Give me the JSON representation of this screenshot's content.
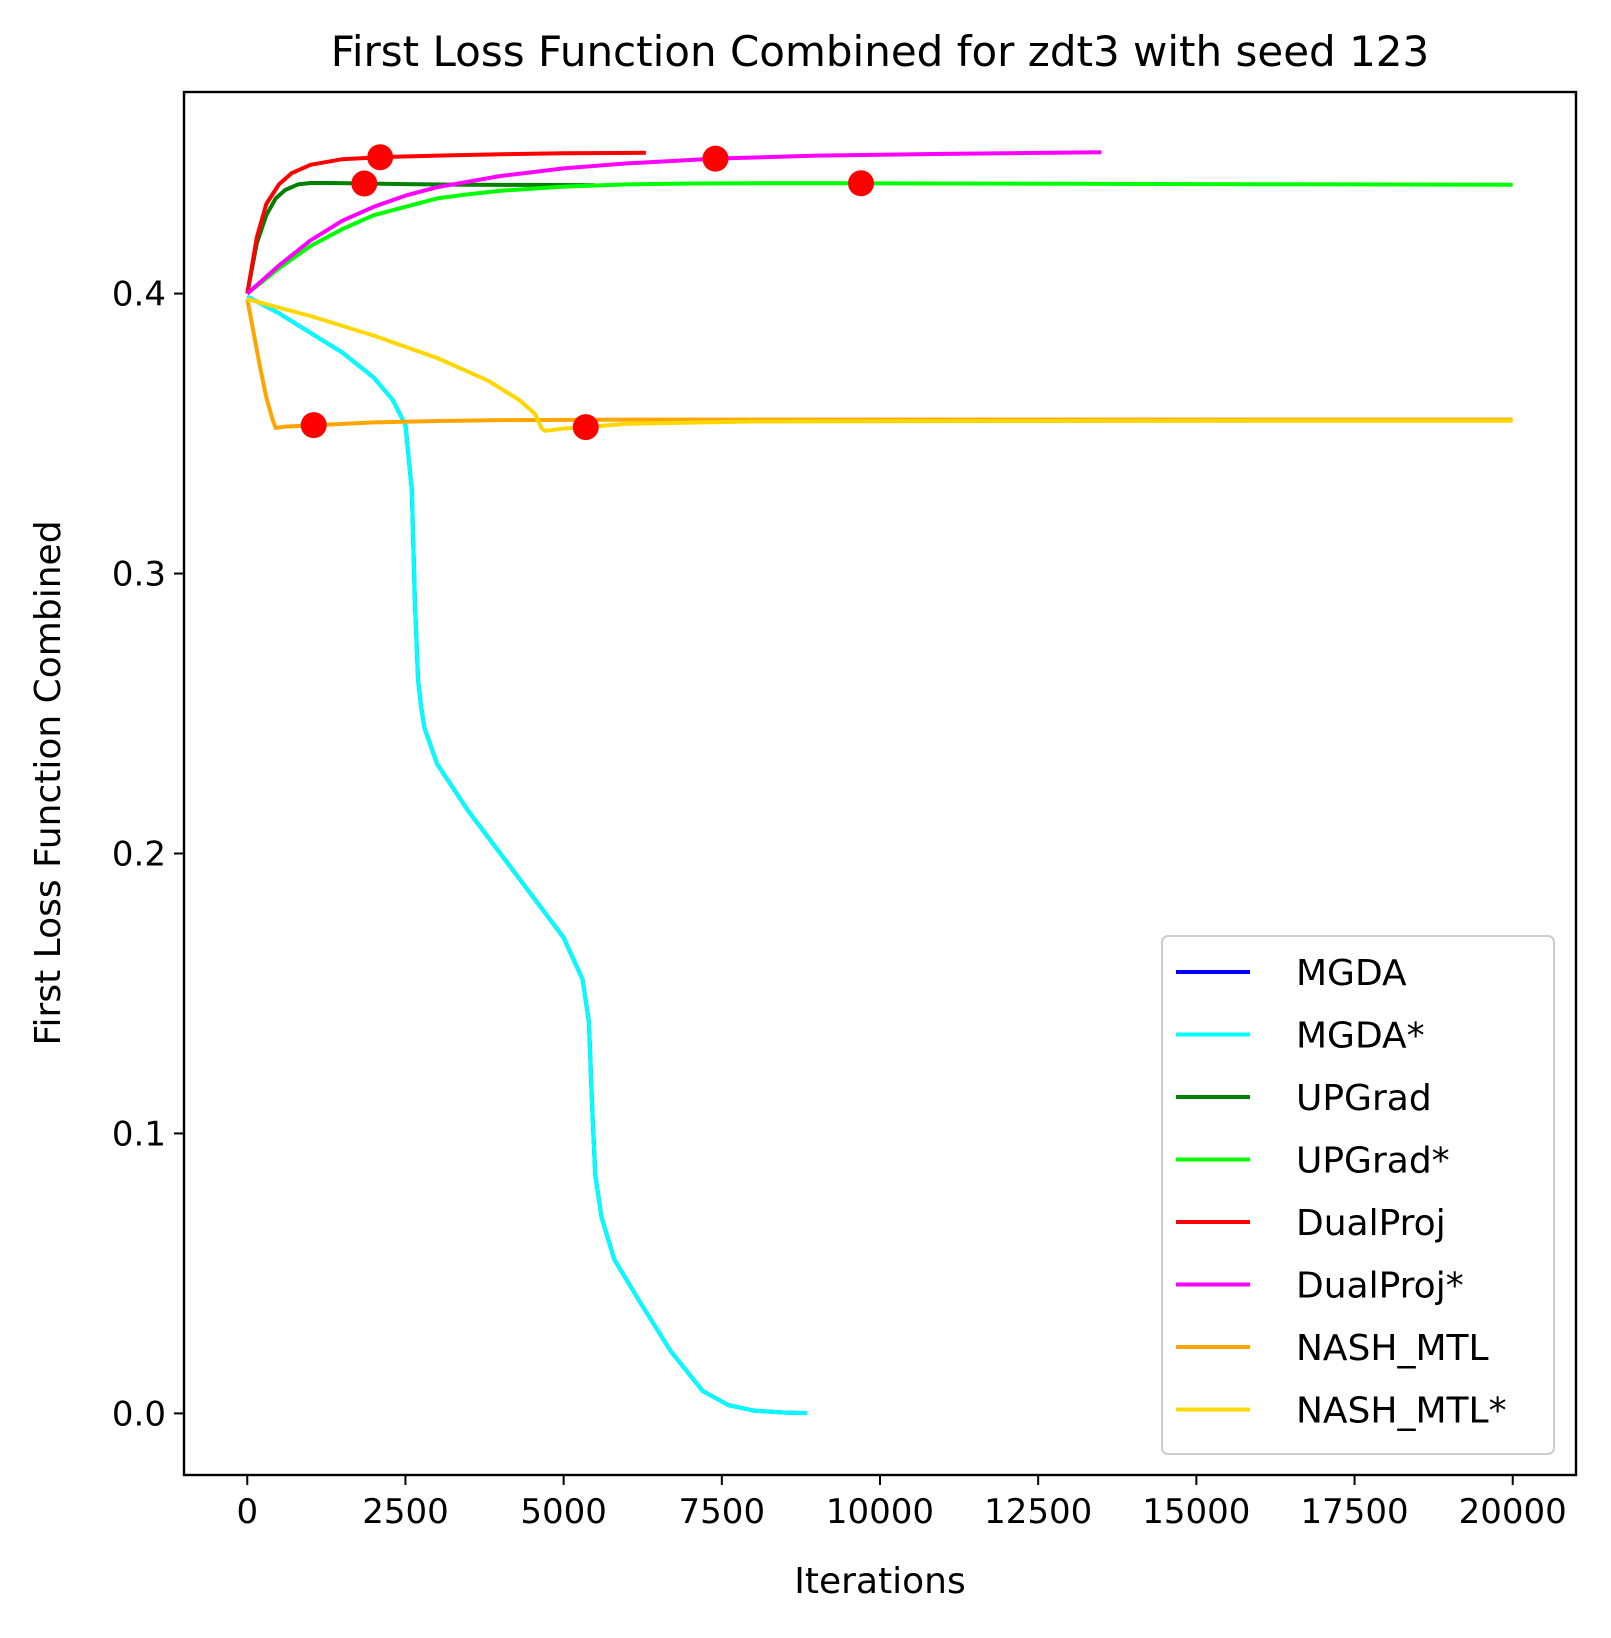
{
  "chart_data": {
    "type": "line",
    "title": "First Loss Function Combined for zdt3 with seed 123",
    "xlabel": "Iterations",
    "ylabel": "First Loss Function Combined",
    "xlim": [
      -1000,
      21000
    ],
    "ylim": [
      -0.022,
      0.472
    ],
    "xticks": [
      0,
      2500,
      5000,
      7500,
      10000,
      12500,
      15000,
      17500,
      20000
    ],
    "xtick_labels": [
      "0",
      "2500",
      "5000",
      "7500",
      "10000",
      "12500",
      "15000",
      "17500",
      "20000"
    ],
    "yticks": [
      0.0,
      0.1,
      0.2,
      0.3,
      0.4
    ],
    "ytick_labels": [
      "0.0",
      "0.1",
      "0.2",
      "0.3",
      "0.4"
    ],
    "grid": false,
    "legend_position": "lower right",
    "marker_color": "#ff0000",
    "series": [
      {
        "name": "MGDA",
        "color": "#0000ff",
        "x": [
          0,
          500,
          1000,
          1500,
          2000,
          2300,
          2500,
          2600,
          2650,
          2700,
          2750,
          2800,
          3000,
          3500,
          4000,
          4500,
          5000,
          5300,
          5400,
          5450,
          5500,
          5600,
          5800,
          6200,
          6700,
          7200,
          7600,
          8000,
          8500,
          8850
        ],
        "y": [
          0.399,
          0.393,
          0.386,
          0.379,
          0.37,
          0.362,
          0.353,
          0.33,
          0.29,
          0.262,
          0.252,
          0.245,
          0.232,
          0.215,
          0.2,
          0.185,
          0.17,
          0.155,
          0.14,
          0.11,
          0.085,
          0.07,
          0.055,
          0.04,
          0.022,
          0.008,
          0.003,
          0.001,
          0.0003,
          0.0001
        ]
      },
      {
        "name": "MGDA*",
        "color": "#00ffff",
        "x": [
          0,
          500,
          1000,
          1500,
          2000,
          2300,
          2500,
          2600,
          2650,
          2700,
          2750,
          2800,
          3000,
          3500,
          4000,
          4500,
          5000,
          5300,
          5400,
          5450,
          5500,
          5600,
          5800,
          6200,
          6700,
          7200,
          7600,
          8000,
          8500,
          8850
        ],
        "y": [
          0.399,
          0.393,
          0.386,
          0.379,
          0.37,
          0.362,
          0.353,
          0.33,
          0.29,
          0.262,
          0.252,
          0.245,
          0.232,
          0.215,
          0.2,
          0.185,
          0.17,
          0.155,
          0.14,
          0.11,
          0.085,
          0.07,
          0.055,
          0.04,
          0.022,
          0.008,
          0.003,
          0.001,
          0.0003,
          0.0001
        ]
      },
      {
        "name": "UPGrad",
        "color": "#008000",
        "x": [
          0,
          150,
          300,
          450,
          600,
          800,
          1000,
          1300,
          1600,
          1900,
          2500,
          3500,
          4500,
          5500
        ],
        "y": [
          0.4,
          0.418,
          0.428,
          0.434,
          0.437,
          0.439,
          0.4395,
          0.4395,
          0.4394,
          0.4393,
          0.4391,
          0.4389,
          0.4388,
          0.4387
        ]
      },
      {
        "name": "UPGrad*",
        "color": "#00ff00",
        "x": [
          0,
          500,
          1000,
          1500,
          2000,
          2500,
          3000,
          3500,
          4000,
          5000,
          6000,
          7000,
          8000,
          9000,
          9700,
          11000,
          13000,
          15000,
          17500,
          20000
        ],
        "y": [
          0.4,
          0.409,
          0.417,
          0.423,
          0.428,
          0.431,
          0.434,
          0.4355,
          0.4367,
          0.4382,
          0.439,
          0.4393,
          0.4394,
          0.4394,
          0.4394,
          0.4393,
          0.4392,
          0.4391,
          0.439,
          0.4389
        ]
      },
      {
        "name": "DualProj",
        "color": "#ff0000",
        "x": [
          0,
          150,
          300,
          500,
          700,
          1000,
          1500,
          2100,
          3000,
          4000,
          5000,
          6300
        ],
        "y": [
          0.4,
          0.42,
          0.432,
          0.439,
          0.443,
          0.446,
          0.448,
          0.4487,
          0.4493,
          0.4498,
          0.4501,
          0.4503
        ]
      },
      {
        "name": "DualProj*",
        "color": "#ff00ff",
        "x": [
          0,
          500,
          1000,
          1500,
          2000,
          2500,
          3000,
          4000,
          5000,
          6000,
          7400,
          9000,
          11000,
          13500
        ],
        "y": [
          0.4,
          0.41,
          0.419,
          0.426,
          0.431,
          0.435,
          0.438,
          0.442,
          0.4447,
          0.4465,
          0.4482,
          0.4493,
          0.4499,
          0.4505
        ]
      },
      {
        "name": "NASH_MTL",
        "color": "#ffa500",
        "x": [
          0,
          100,
          200,
          300,
          400,
          450,
          600,
          1050,
          2000,
          3000,
          4000,
          6000,
          8000,
          12000,
          16000,
          20000
        ],
        "y": [
          0.398,
          0.386,
          0.374,
          0.363,
          0.355,
          0.352,
          0.3525,
          0.353,
          0.354,
          0.3545,
          0.3548,
          0.355,
          0.355,
          0.355,
          0.355,
          0.355
        ]
      },
      {
        "name": "NASH_MTL*",
        "color": "#ffd700",
        "x": [
          0,
          1000,
          2000,
          3000,
          3800,
          4300,
          4550,
          4650,
          4700,
          4800,
          5000,
          5350,
          6000,
          8000,
          12000,
          16000,
          20000
        ],
        "y": [
          0.398,
          0.392,
          0.385,
          0.377,
          0.369,
          0.362,
          0.357,
          0.352,
          0.351,
          0.3512,
          0.3518,
          0.3523,
          0.3535,
          0.3543,
          0.3545,
          0.3546,
          0.3546
        ]
      }
    ],
    "markers": [
      {
        "series": "UPGrad",
        "x": 1850,
        "y": 0.4393
      },
      {
        "series": "UPGrad*",
        "x": 9700,
        "y": 0.4394
      },
      {
        "series": "DualProj",
        "x": 2100,
        "y": 0.4487
      },
      {
        "series": "DualProj*",
        "x": 7400,
        "y": 0.4482
      },
      {
        "series": "NASH_MTL",
        "x": 1050,
        "y": 0.353
      },
      {
        "series": "NASH_MTL*",
        "x": 5350,
        "y": 0.3523
      }
    ]
  }
}
